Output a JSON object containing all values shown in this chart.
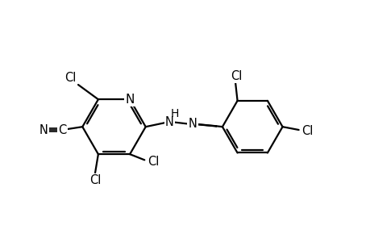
{
  "bg": "#ffffff",
  "lc": "#000000",
  "lw": 1.6,
  "fs": 10.5,
  "xlim": [
    0.0,
    9.5
  ],
  "ylim": [
    1.2,
    5.8
  ],
  "figsize": [
    4.6,
    3.0
  ],
  "dpi": 100
}
